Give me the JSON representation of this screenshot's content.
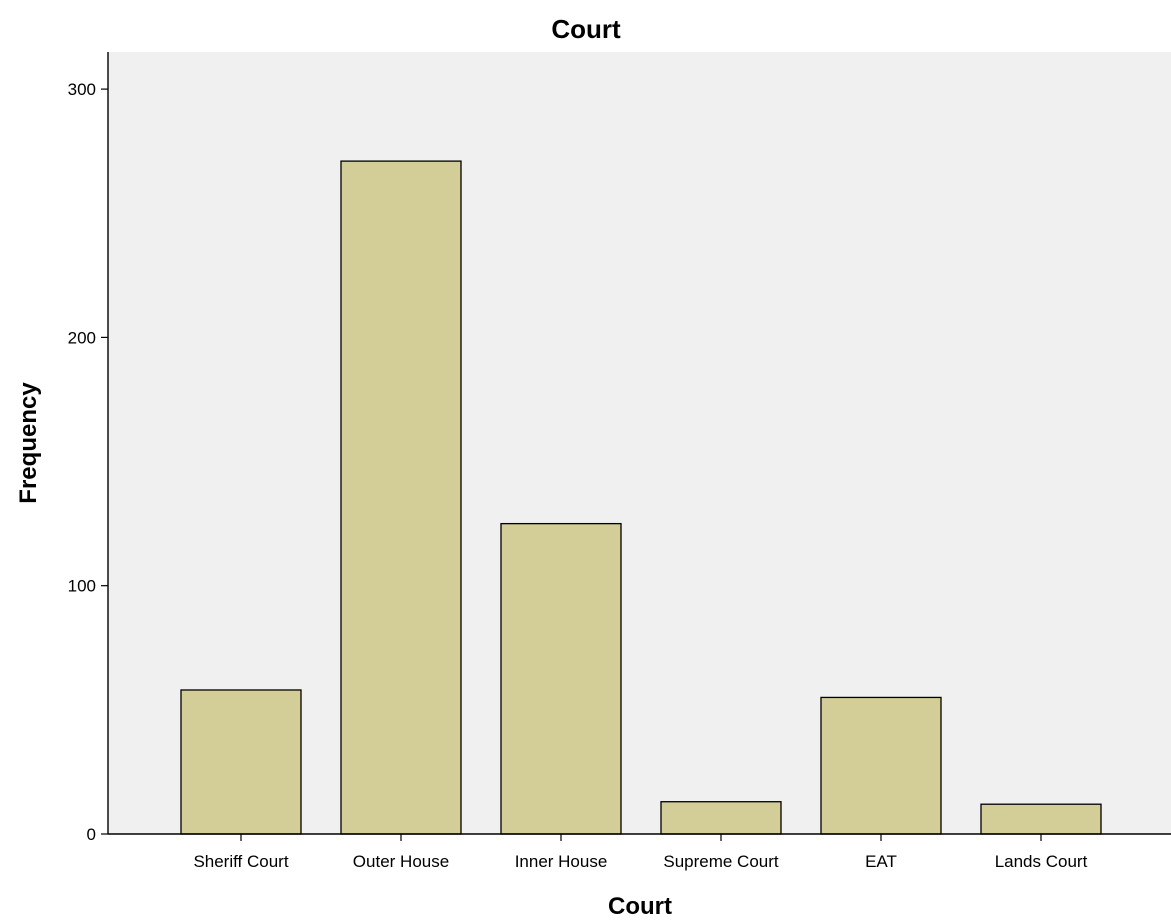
{
  "chart_data": {
    "type": "bar",
    "title": "Court",
    "xlabel": "Court",
    "ylabel": "Frequency",
    "categories": [
      "Sheriff Court",
      "Outer House",
      "Inner House",
      "Supreme Court",
      "EAT",
      "Lands Court"
    ],
    "values": [
      58,
      271,
      125,
      13,
      55,
      12
    ],
    "ylim": [
      0,
      300
    ],
    "yticks": [
      0,
      100,
      200,
      300
    ],
    "grid": false,
    "legend": "none",
    "colors": {
      "bar_fill": "#d3cd98",
      "bar_stroke": "#000000",
      "plot_background": "#f0f0f0",
      "page_background": "#ffffff"
    }
  }
}
